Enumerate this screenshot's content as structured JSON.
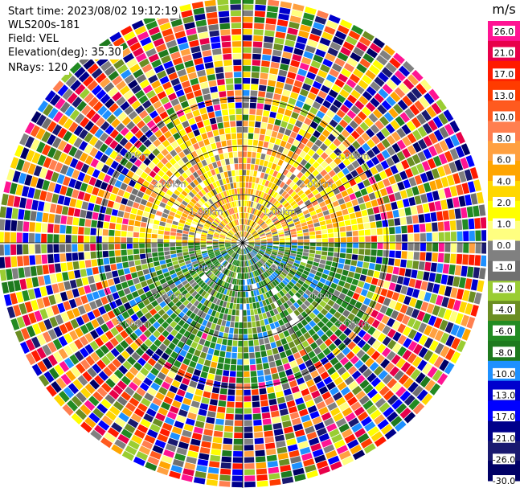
{
  "info": {
    "start_time": "Start time: 2023/08/02 19:12:19",
    "instrument": "WLS200s-181",
    "field": "Field: VEL",
    "elevation": "Elevation(deg): 35.30",
    "nrays": "NRays: 120"
  },
  "chart_data": {
    "type": "heatmap",
    "projection": "polar-ppi",
    "field": "VEL",
    "unit": "m/s",
    "range_ring_labels": [
      "1.00km",
      "2.00km",
      "3.00km"
    ],
    "ring_label_positions": [
      "along NW, NE, SW and SE diagonals and cardinal directions"
    ],
    "colorbar": {
      "unit": "m/s",
      "ticks": [
        "26.0",
        "21.0",
        "17.0",
        "13.0",
        "10.0",
        "8.0",
        "6.0",
        "4.0",
        "2.0",
        "1.0",
        "0.0",
        "-1.0",
        "-2.0",
        "-4.0",
        "-6.0",
        "-8.0",
        "-10.0",
        "-13.0",
        "-17.0",
        "-21.0",
        "-26.0",
        "-30.0"
      ],
      "colors": [
        "#ff1493",
        "#e8004a",
        "#ff1a00",
        "#ff3b00",
        "#ff5a1f",
        "#ff7f50",
        "#ffa040",
        "#ffa500",
        "#ffd700",
        "#ffff00",
        "#ffff80",
        "#808080",
        "#707070",
        "#9acd32",
        "#6b8e23",
        "#228b22",
        "#1e7a1e",
        "#1e90ff",
        "#0000cd",
        "#0000ff",
        "#00008b",
        "#191970",
        "#000066"
      ]
    },
    "pattern": {
      "inner_north_half": "approaching/receding positive 1 to 6 m/s (yellow/orange)",
      "inner_south_half": "negative -2 to -8 m/s (green/blue)",
      "outer": "noise, random colors"
    }
  }
}
